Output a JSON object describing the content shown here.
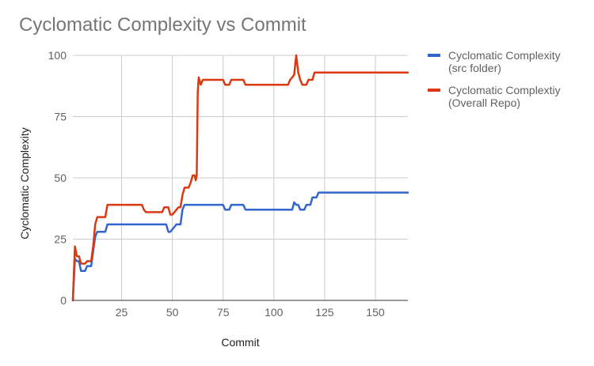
{
  "chart_data": {
    "type": "line",
    "title": "Cyclomatic Complexity vs Commit",
    "xlabel": "Commit",
    "ylabel": "Cyclomatic Complexity",
    "xlim": [
      1,
      166
    ],
    "ylim": [
      0,
      100
    ],
    "xticks": [
      25,
      50,
      75,
      100,
      125,
      150
    ],
    "yticks": [
      0,
      25,
      50,
      75,
      100
    ],
    "grid": true,
    "legend_position": "right",
    "series": [
      {
        "name": "Cyclomatic Complexity\n(src folder)",
        "color": "#3366cc",
        "points": [
          [
            1,
            0
          ],
          [
            2,
            17
          ],
          [
            3,
            16
          ],
          [
            4,
            16
          ],
          [
            5,
            12
          ],
          [
            6,
            12
          ],
          [
            7,
            12
          ],
          [
            8,
            14
          ],
          [
            9,
            14
          ],
          [
            10,
            14
          ],
          [
            11,
            20
          ],
          [
            12,
            26
          ],
          [
            13,
            28
          ],
          [
            14,
            28
          ],
          [
            15,
            28
          ],
          [
            16,
            28
          ],
          [
            17,
            28
          ],
          [
            18,
            31
          ],
          [
            19,
            31
          ],
          [
            20,
            31
          ],
          [
            30,
            31
          ],
          [
            40,
            31
          ],
          [
            47,
            31
          ],
          [
            48,
            28
          ],
          [
            49,
            28
          ],
          [
            50,
            29
          ],
          [
            51,
            30
          ],
          [
            52,
            31
          ],
          [
            53,
            31
          ],
          [
            54,
            31
          ],
          [
            55,
            37
          ],
          [
            56,
            39
          ],
          [
            60,
            39
          ],
          [
            65,
            39
          ],
          [
            70,
            39
          ],
          [
            75,
            39
          ],
          [
            76,
            37
          ],
          [
            77,
            37
          ],
          [
            78,
            37
          ],
          [
            79,
            39
          ],
          [
            80,
            39
          ],
          [
            85,
            39
          ],
          [
            86,
            37
          ],
          [
            87,
            37
          ],
          [
            95,
            37
          ],
          [
            100,
            37
          ],
          [
            108,
            37
          ],
          [
            109,
            37
          ],
          [
            110,
            40
          ],
          [
            111,
            39
          ],
          [
            112,
            39
          ],
          [
            113,
            37
          ],
          [
            114,
            37
          ],
          [
            115,
            37
          ],
          [
            116,
            39
          ],
          [
            117,
            39
          ],
          [
            118,
            39
          ],
          [
            119,
            42
          ],
          [
            120,
            42
          ],
          [
            121,
            42
          ],
          [
            122,
            44
          ],
          [
            130,
            44
          ],
          [
            140,
            44
          ],
          [
            150,
            44
          ],
          [
            160,
            44
          ],
          [
            166,
            44
          ]
        ]
      },
      {
        "name": "Cyclomatic Complextiy\n(Overall Repo)",
        "color": "#dc3912",
        "points": [
          [
            1,
            0
          ],
          [
            2,
            22
          ],
          [
            3,
            18
          ],
          [
            4,
            18
          ],
          [
            5,
            15
          ],
          [
            6,
            15
          ],
          [
            7,
            15
          ],
          [
            8,
            16
          ],
          [
            9,
            16
          ],
          [
            10,
            16
          ],
          [
            11,
            22
          ],
          [
            12,
            31
          ],
          [
            13,
            34
          ],
          [
            14,
            34
          ],
          [
            15,
            34
          ],
          [
            16,
            34
          ],
          [
            17,
            34
          ],
          [
            18,
            39
          ],
          [
            19,
            39
          ],
          [
            20,
            39
          ],
          [
            25,
            39
          ],
          [
            30,
            39
          ],
          [
            35,
            39
          ],
          [
            36,
            37
          ],
          [
            37,
            36
          ],
          [
            40,
            36
          ],
          [
            44,
            36
          ],
          [
            45,
            36
          ],
          [
            46,
            38
          ],
          [
            47,
            38
          ],
          [
            48,
            38
          ],
          [
            49,
            35
          ],
          [
            50,
            35
          ],
          [
            51,
            36
          ],
          [
            52,
            37
          ],
          [
            53,
            38
          ],
          [
            54,
            38
          ],
          [
            55,
            43
          ],
          [
            56,
            46
          ],
          [
            57,
            46
          ],
          [
            58,
            46
          ],
          [
            59,
            48
          ],
          [
            60,
            51
          ],
          [
            61,
            51
          ],
          [
            61.5,
            49
          ],
          [
            62,
            51
          ],
          [
            62.5,
            85
          ],
          [
            63,
            91
          ],
          [
            64,
            88
          ],
          [
            65,
            90
          ],
          [
            70,
            90
          ],
          [
            75,
            90
          ],
          [
            76,
            88
          ],
          [
            77,
            88
          ],
          [
            78,
            88
          ],
          [
            79,
            90
          ],
          [
            80,
            90
          ],
          [
            85,
            90
          ],
          [
            86,
            88
          ],
          [
            87,
            88
          ],
          [
            95,
            88
          ],
          [
            100,
            88
          ],
          [
            105,
            88
          ],
          [
            107,
            88
          ],
          [
            108,
            90
          ],
          [
            109,
            91
          ],
          [
            110,
            92
          ],
          [
            111,
            100
          ],
          [
            112,
            93
          ],
          [
            113,
            90
          ],
          [
            114,
            88
          ],
          [
            115,
            88
          ],
          [
            116,
            88
          ],
          [
            117,
            90
          ],
          [
            118,
            90
          ],
          [
            119,
            90
          ],
          [
            120,
            93
          ],
          [
            125,
            93
          ],
          [
            130,
            93
          ],
          [
            140,
            93
          ],
          [
            150,
            93
          ],
          [
            160,
            93
          ],
          [
            166,
            93
          ]
        ]
      }
    ]
  }
}
